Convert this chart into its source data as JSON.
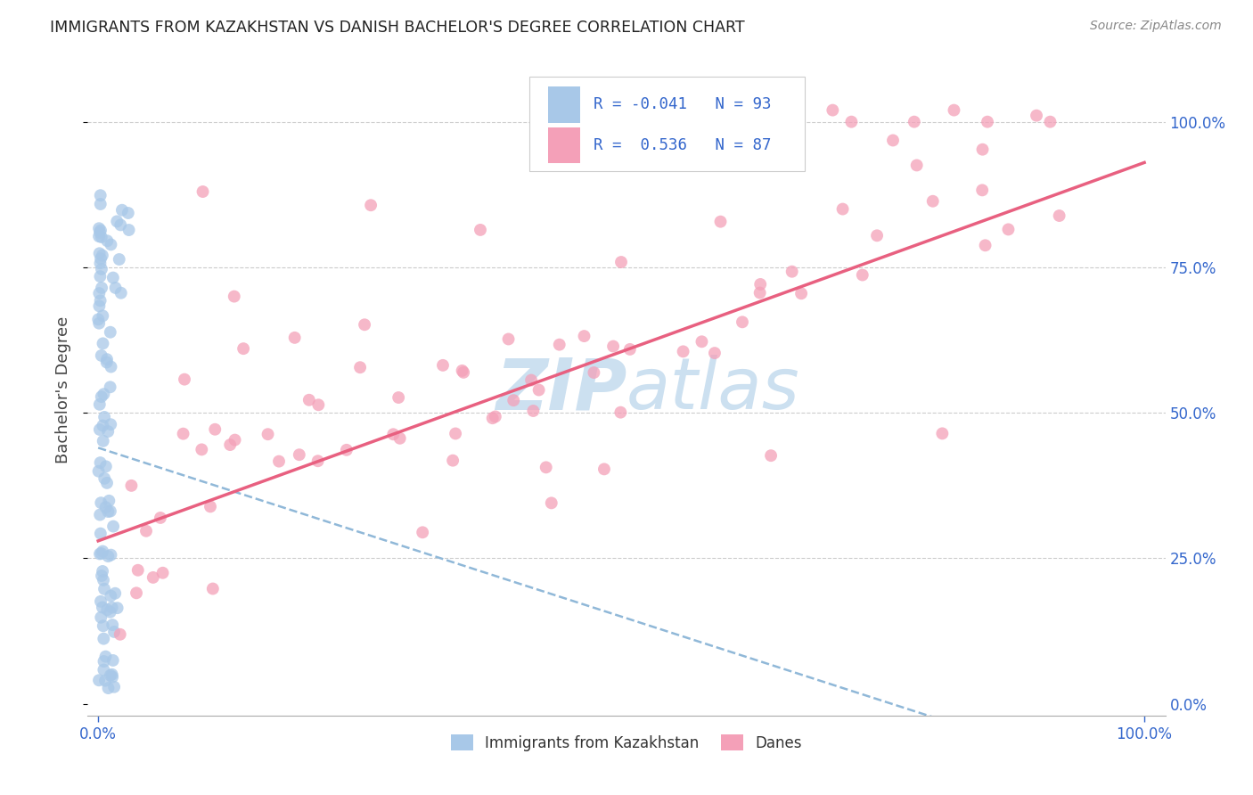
{
  "title": "IMMIGRANTS FROM KAZAKHSTAN VS DANISH BACHELOR'S DEGREE CORRELATION CHART",
  "source": "Source: ZipAtlas.com",
  "ylabel": "Bachelor's Degree",
  "legend_label1": "Immigrants from Kazakhstan",
  "legend_label2": "Danes",
  "R1": -0.041,
  "N1": 93,
  "R2": 0.536,
  "N2": 87,
  "color_blue": "#a8c8e8",
  "color_pink": "#f4a0b8",
  "line_blue_color": "#90b8d8",
  "line_pink_color": "#e86080",
  "watermark_color": "#cce0f0",
  "grid_color": "#cccccc",
  "title_color": "#222222",
  "source_color": "#888888",
  "tick_color": "#3366cc",
  "ylabel_color": "#444444",
  "legend_text_color": "#3366cc",
  "legend_r_color": "#222222"
}
